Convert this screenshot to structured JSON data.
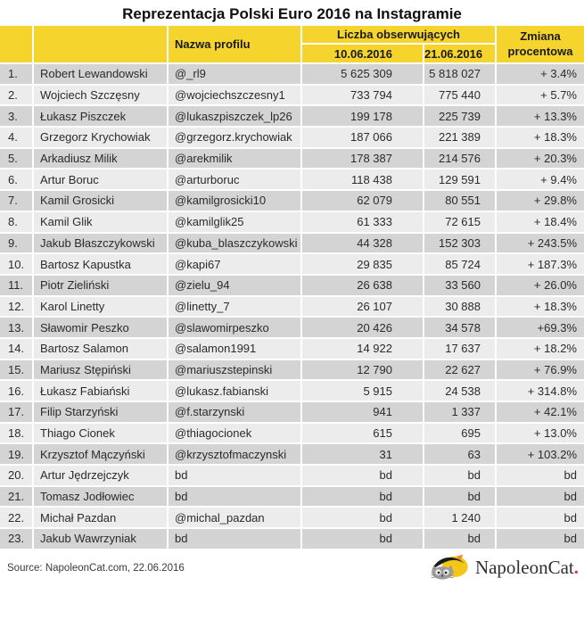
{
  "title": "Reprezentacja Polski Euro 2016 na Instagramie",
  "header": {
    "profile": "Nazwa profilu",
    "followers_group": "Liczba obserwujących",
    "date1": "10.06.2016",
    "date2": "21.06.2016",
    "change": "Zmiana procentowa"
  },
  "footer": {
    "source": "Source: NapoleonCat.com, 22.06.2016",
    "logo_text": "NapoleonCat",
    "logo_dot": "."
  },
  "colors": {
    "header_yellow": "#f5d42e",
    "row_odd": "#d4d4d4",
    "row_even": "#ececec",
    "text": "#2b2b2b",
    "logo_red": "#e03a2f"
  },
  "chart_data": {
    "type": "table",
    "title": "Reprezentacja Polski Euro 2016 na Instagramie",
    "columns": [
      "",
      "",
      "Nazwa profilu",
      "Liczba obserwujących 10.06.2016",
      "Liczba obserwujących 21.06.2016",
      "Zmiana procentowa"
    ],
    "rows": [
      [
        "1.",
        "Robert Lewandowski",
        "@_rl9",
        "5 625 309",
        "5 818 027",
        "+ 3.4%"
      ],
      [
        "2.",
        "Wojciech Szczęsny",
        "@wojciechszczesny1",
        "733 794",
        "775 440",
        "+ 5.7%"
      ],
      [
        "3.",
        "Łukasz Piszczek",
        "@lukaszpiszczek_lp26",
        "199 178",
        "225 739",
        "+ 13.3%"
      ],
      [
        "4.",
        "Grzegorz Krychowiak",
        "@grzegorz.krychowiak",
        "187 066",
        "221 389",
        "+ 18.3%"
      ],
      [
        "5.",
        "Arkadiusz Milik",
        "@arekmilik",
        "178 387",
        "214 576",
        "+ 20.3%"
      ],
      [
        "6.",
        "Artur Boruc",
        "@arturboruc",
        "118 438",
        "129 591",
        "+ 9.4%"
      ],
      [
        "7.",
        "Kamil Grosicki",
        "@kamilgrosicki10",
        "62 079",
        "80 551",
        "+ 29.8%"
      ],
      [
        "8.",
        "Kamil Glik",
        "@kamilglik25",
        "61 333",
        "72 615",
        "+ 18.4%"
      ],
      [
        "9.",
        "Jakub Błaszczykowski",
        "@kuba_blaszczykowski",
        "44 328",
        "152 303",
        "+ 243.5%"
      ],
      [
        "10.",
        "Bartosz Kapustka",
        "@kapi67",
        "29 835",
        "85 724",
        "+ 187.3%"
      ],
      [
        "11.",
        "Piotr Zieliński",
        "@zielu_94",
        "26 638",
        "33 560",
        "+ 26.0%"
      ],
      [
        "12.",
        "Karol Linetty",
        "@linetty_7",
        "26 107",
        "30 888",
        "+ 18.3%"
      ],
      [
        "13.",
        "Sławomir Peszko",
        "@slawomirpeszko",
        "20 426",
        "34 578",
        "+69.3%"
      ],
      [
        "14.",
        "Bartosz Salamon",
        "@salamon1991",
        "14 922",
        "17 637",
        "+ 18.2%"
      ],
      [
        "15.",
        "Mariusz Stępiński",
        "@mariuszstepinski",
        "12 790",
        "22 627",
        "+ 76.9%"
      ],
      [
        "16.",
        "Łukasz Fabiański",
        "@lukasz.fabianski",
        "5 915",
        "24 538",
        "+ 314.8%"
      ],
      [
        "17.",
        "Filip Starzyński",
        "@f.starzynski",
        "941",
        "1 337",
        "+ 42.1%"
      ],
      [
        "18.",
        "Thiago Cionek",
        "@thiagocionek",
        "615",
        "695",
        "+ 13.0%"
      ],
      [
        "19.",
        "Krzysztof Mączyński",
        "@krzysztofmaczynski",
        "31",
        "63",
        "+ 103.2%"
      ],
      [
        "20.",
        "Artur Jędrzejczyk",
        "bd",
        "bd",
        "bd",
        "bd"
      ],
      [
        "21.",
        "Tomasz Jodłowiec",
        "bd",
        "bd",
        "bd",
        "bd"
      ],
      [
        "22.",
        "Michał Pazdan",
        "@michal_pazdan",
        "bd",
        "1 240",
        "bd"
      ],
      [
        "23.",
        "Jakub Wawrzyniak",
        "bd",
        "bd",
        "bd",
        "bd"
      ]
    ],
    "source": "Source: NapoleonCat.com, 22.06.2016"
  }
}
